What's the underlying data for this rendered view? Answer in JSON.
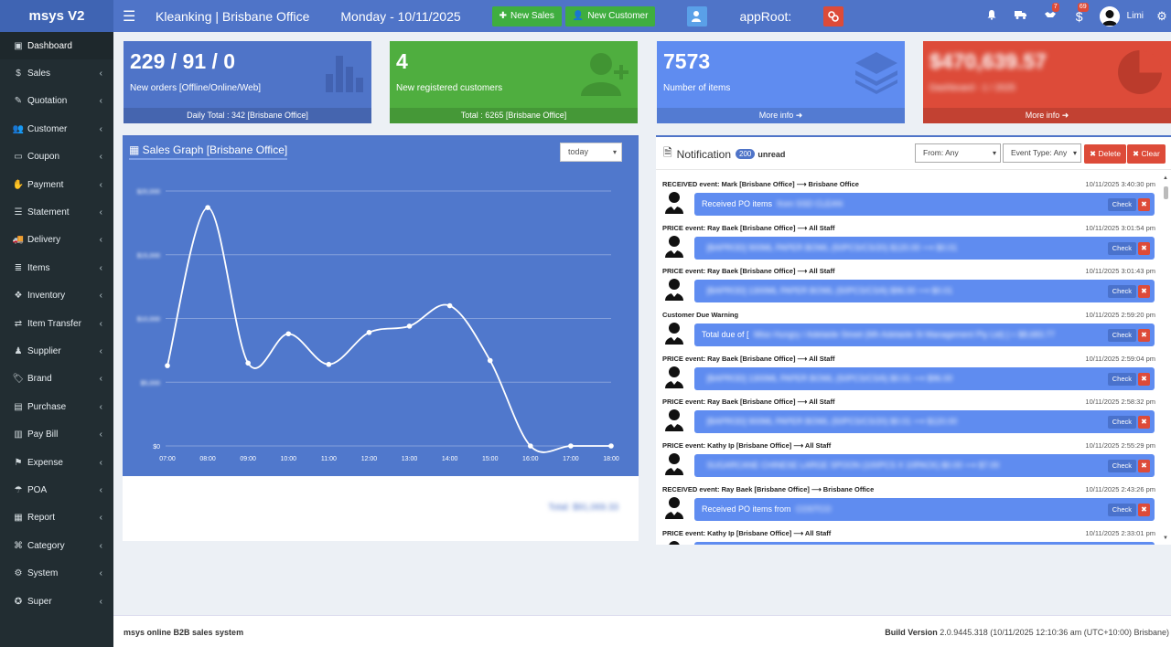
{
  "topbar": {
    "brand": "msys V2",
    "title": "Kleanking | Brisbane Office",
    "date": "Monday - 10/11/2025",
    "new_sales": "New Sales",
    "new_customer": "New Customer",
    "approot": "appRoot:",
    "bell_badge": "",
    "handshake_badge": "7",
    "dollar_badge": "69",
    "user": "Limi"
  },
  "sidebar": {
    "items": [
      {
        "label": "Dashboard",
        "icon": "dashboard-icon"
      },
      {
        "label": "Sales",
        "icon": "dollar-icon"
      },
      {
        "label": "Quotation",
        "icon": "edit-icon"
      },
      {
        "label": "Customer",
        "icon": "users-icon"
      },
      {
        "label": "Coupon",
        "icon": "ticket-icon"
      },
      {
        "label": "Payment",
        "icon": "hand-icon"
      },
      {
        "label": "Statement",
        "icon": "list-icon"
      },
      {
        "label": "Delivery",
        "icon": "truck-icon"
      },
      {
        "label": "Items",
        "icon": "items-icon"
      },
      {
        "label": "Inventory",
        "icon": "cubes-icon"
      },
      {
        "label": "Item Transfer",
        "icon": "transfer-icon"
      },
      {
        "label": "Supplier",
        "icon": "supplier-icon"
      },
      {
        "label": "Brand",
        "icon": "tag-icon"
      },
      {
        "label": "Purchase",
        "icon": "purchase-icon"
      },
      {
        "label": "Pay Bill",
        "icon": "bill-icon"
      },
      {
        "label": "Expense",
        "icon": "expense-icon"
      },
      {
        "label": "POA",
        "icon": "poa-icon"
      },
      {
        "label": "Report",
        "icon": "report-icon"
      },
      {
        "label": "Category",
        "icon": "category-icon"
      },
      {
        "label": "System",
        "icon": "system-icon"
      },
      {
        "label": "Super",
        "icon": "super-icon"
      }
    ]
  },
  "boxes": [
    {
      "num": "229 / 91 / 0",
      "desc": "New orders [Offline/Online/Web]",
      "foot": "Daily Total : 342 [Brisbane Office]",
      "color": "#4f74c8"
    },
    {
      "num": "4",
      "desc": "New registered customers",
      "foot": "Total : 6265 [Brisbane Office]",
      "color": "#4fae3f"
    },
    {
      "num": "7573",
      "desc": "Number of items",
      "foot": "More info",
      "color": "#5f8cf0"
    },
    {
      "num": "$470,639.57",
      "desc": "Dashboard - 1 / 2025",
      "foot": "More info",
      "color": "#dd4b39"
    }
  ],
  "graph": {
    "title": "Sales Graph [Brisbane Office]",
    "range": "today",
    "total": "Total: $91,069.33"
  },
  "chart_data": {
    "type": "line",
    "x": [
      "07:00",
      "08:00",
      "09:00",
      "10:00",
      "11:00",
      "12:00",
      "13:00",
      "14:00",
      "15:00",
      "16:00",
      "17:00",
      "18:00"
    ],
    "values": [
      6300,
      18700,
      6500,
      8800,
      6400,
      8900,
      9400,
      11000,
      6700,
      0,
      0,
      0
    ],
    "yticks": [
      "$0",
      "$5,000",
      "$10,000",
      "$15,000",
      "$20,000"
    ],
    "ylim": [
      0,
      20000
    ],
    "grid": true
  },
  "notif": {
    "title": "Notification",
    "count": "200",
    "unread": "unread",
    "from": "From: Any",
    "type": "Event Type: Any",
    "delete": "Delete",
    "clear": "Clear",
    "check": "Check",
    "items": [
      {
        "hdr": "RECEIVED event: Mark [Brisbane Office] ⟶ Brisbane Office",
        "time": "10/11/2025 3:40:30 pm",
        "msg": "Received PO items",
        "blur": "from SSD CLEAN"
      },
      {
        "hdr": "PRICE event: Ray Baek [Brisbane Office] ⟶ All Staff",
        "time": "10/11/2025 3:01:54 pm",
        "msg": "",
        "blur": "[BAPROD] 900ML PAPER BOWL (50PCS/CS/20)  $120.00 ⟶ $0.01"
      },
      {
        "hdr": "PRICE event: Ray Baek [Brisbane Office] ⟶ All Staff",
        "time": "10/11/2025 3:01:43 pm",
        "msg": "",
        "blur": "[BAPROD] 1300ML PAPER BOWL (50PCS/CS/6)  $96.00 ⟶ $0.01"
      },
      {
        "hdr": "Customer Due Warning",
        "time": "10/11/2025 2:59:20 pm",
        "msg": "Total due of [",
        "blur": "Miso Hungry / Adelaide Street (Mh Adelaide St Management Pty Ltd) ] = $8,683.77"
      },
      {
        "hdr": "PRICE event: Ray Baek [Brisbane Office] ⟶ All Staff",
        "time": "10/11/2025 2:59:04 pm",
        "msg": "",
        "blur": "[BAPROD] 1300ML PAPER BOWL (50PCS/CS/6)  $0.01 ⟶ $96.00"
      },
      {
        "hdr": "PRICE event: Ray Baek [Brisbane Office] ⟶ All Staff",
        "time": "10/11/2025 2:58:32 pm",
        "msg": "",
        "blur": "[BAPROD] 900ML PAPER BOWL (50PCS/CS/20)  $0.01 ⟶ $120.00"
      },
      {
        "hdr": "PRICE event: Kathy Ip [Brisbane Office] ⟶ All Staff",
        "time": "10/11/2025 2:55:29 pm",
        "msg": "",
        "blur": "SUGARCANE CHINESE LARGE SPOON (100PCS X 10PACK)  $0.00 ⟶ $7.00"
      },
      {
        "hdr": "RECEIVED event: Ray Baek [Brisbane Office] ⟶ Brisbane Office",
        "time": "10/11/2025 2:43:26 pm",
        "msg": "Received PO items from",
        "blur": "COSTCO"
      },
      {
        "hdr": "PRICE event: Kathy Ip [Brisbane Office] ⟶ All Staff",
        "time": "10/11/2025 2:33:01 pm",
        "msg": "",
        "blur": ""
      }
    ]
  },
  "footer": {
    "left": "msys online B2B sales system",
    "build_label": "Build Version",
    "build_value": "2.0.9445.318 (10/11/2025 12:10:36 am (UTC+10:00) Brisbane)"
  }
}
